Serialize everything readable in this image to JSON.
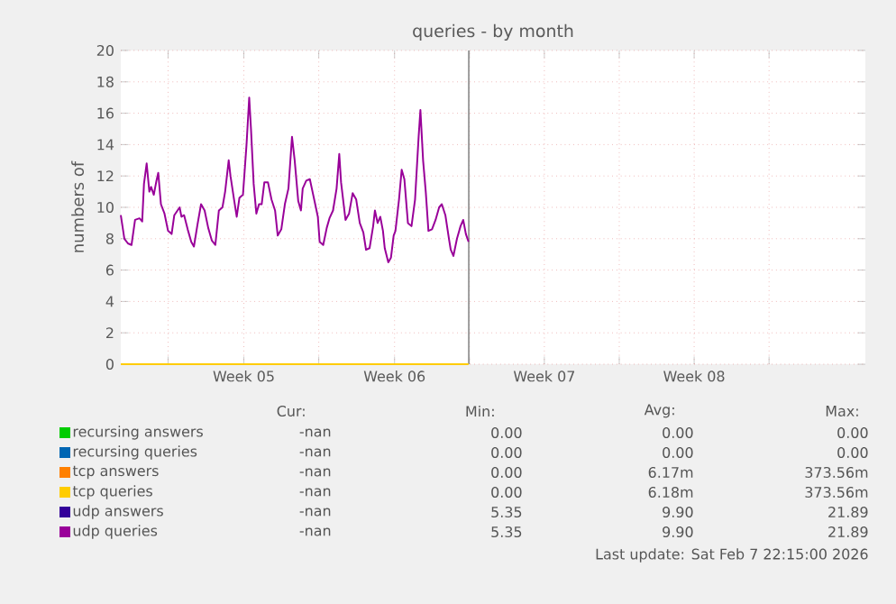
{
  "chart_data": {
    "type": "line",
    "title": "queries - by month",
    "ylabel": "numbers of",
    "xlim": [
      "2026-01-22T16:00",
      "2026-02-26T11:00"
    ],
    "ylim": [
      0,
      20
    ],
    "yticks": [
      0,
      2,
      4,
      6,
      8,
      10,
      12,
      14,
      16,
      18,
      20
    ],
    "xticks": [
      {
        "value": "2026-01-24T21:00",
        "label": null
      },
      {
        "value": "2026-01-28T10:00",
        "label": "Week 05"
      },
      {
        "value": "2026-01-31T22:00",
        "label": null
      },
      {
        "value": "2026-02-04T11:00",
        "label": "Week 06"
      },
      {
        "value": "2026-02-07T23:00",
        "label": null
      },
      {
        "value": "2026-02-11T11:00",
        "label": "Week 07"
      },
      {
        "value": "2026-02-14T23:00",
        "label": null
      },
      {
        "value": "2026-02-18T11:00",
        "label": "Week 08"
      },
      {
        "value": "2026-02-21T23:00",
        "label": null
      }
    ],
    "grid": true,
    "legend": "bottom",
    "marker": "none",
    "line_style": "solid",
    "ref_lines": [
      {
        "axis": "x",
        "value": "2026-02-07T22:15",
        "color": "#888888"
      }
    ],
    "series": [
      {
        "name": "recursing answers",
        "color": "#00cc00",
        "values": [
          null
        ]
      },
      {
        "name": "recursing queries",
        "color": "#0066b3",
        "values": [
          null
        ]
      },
      {
        "name": "tcp answers",
        "color": "#ff8000",
        "values": [
          null
        ]
      },
      {
        "name": "tcp queries",
        "color": "#ffcc00",
        "x": [
          "2026-01-22T16:00",
          "2026-02-07T22:00"
        ],
        "values": [
          0,
          0
        ]
      },
      {
        "name": "udp answers",
        "color": "#330099",
        "values": [
          null
        ]
      },
      {
        "name": "udp queries",
        "color": "#990099",
        "x": [
          "2026-01-22T16:00",
          "2026-01-22T20:00",
          "2026-01-23T00:00",
          "2026-01-23T04:00",
          "2026-01-23T08:00",
          "2026-01-23T13:00",
          "2026-01-23T16:00",
          "2026-01-23T18:00",
          "2026-01-23T21:00",
          "2026-01-24T00:00",
          "2026-01-24T02:00",
          "2026-01-24T05:00",
          "2026-01-24T08:00",
          "2026-01-24T10:00",
          "2026-01-24T13:00",
          "2026-01-24T17:00",
          "2026-01-24T21:00",
          "2026-01-25T01:00",
          "2026-01-25T04:00",
          "2026-01-25T10:00",
          "2026-01-25T12:00",
          "2026-01-25T15:00",
          "2026-01-25T19:00",
          "2026-01-25T23:00",
          "2026-01-26T02:00",
          "2026-01-26T06:00",
          "2026-01-26T10:00",
          "2026-01-26T14:00",
          "2026-01-26T18:00",
          "2026-01-26T22:00",
          "2026-01-27T02:00",
          "2026-01-27T06:00",
          "2026-01-27T10:00",
          "2026-01-27T13:00",
          "2026-01-27T17:00",
          "2026-01-27T19:00",
          "2026-01-27T23:00",
          "2026-01-28T02:00",
          "2026-01-28T05:00",
          "2026-01-28T09:00",
          "2026-01-28T13:00",
          "2026-01-28T16:00",
          "2026-01-28T18:00",
          "2026-01-28T21:00",
          "2026-01-29T00:00",
          "2026-01-29T03:00",
          "2026-01-29T06:00",
          "2026-01-29T09:00",
          "2026-01-29T13:00",
          "2026-01-29T17:00",
          "2026-01-29T21:00",
          "2026-01-30T00:00",
          "2026-01-30T04:00",
          "2026-01-30T08:00",
          "2026-01-30T12:00",
          "2026-01-30T16:00",
          "2026-01-30T19:00",
          "2026-01-30T23:00",
          "2026-01-31T02:00",
          "2026-01-31T04:00",
          "2026-01-31T08:00",
          "2026-01-31T12:00",
          "2026-01-31T15:00",
          "2026-01-31T18:00",
          "2026-01-31T21:00",
          "2026-01-31T23:00",
          "2026-02-01T03:00",
          "2026-02-01T07:00",
          "2026-02-01T10:00",
          "2026-02-01T14:00",
          "2026-02-01T18:00",
          "2026-02-01T21:00",
          "2026-02-01T23:00",
          "2026-02-02T04:00",
          "2026-02-02T08:00",
          "2026-02-02T12:00",
          "2026-02-02T16:00",
          "2026-02-02T20:00",
          "2026-02-03T00:00",
          "2026-02-03T03:00",
          "2026-02-03T07:00",
          "2026-02-03T11:00",
          "2026-02-03T13:00",
          "2026-02-03T16:00",
          "2026-02-03T19:00",
          "2026-02-03T22:00",
          "2026-02-04T00:00",
          "2026-02-04T04:00",
          "2026-02-04T07:00",
          "2026-02-04T10:00",
          "2026-02-04T12:00",
          "2026-02-04T16:00",
          "2026-02-04T19:00",
          "2026-02-04T22:00",
          "2026-02-05T02:00",
          "2026-02-05T06:00",
          "2026-02-05T10:00",
          "2026-02-05T14:00",
          "2026-02-05T16:00",
          "2026-02-05T19:00",
          "2026-02-05T22:00",
          "2026-02-06T01:00",
          "2026-02-06T05:00",
          "2026-02-06T09:00",
          "2026-02-06T13:00",
          "2026-02-06T16:00",
          "2026-02-06T20:00",
          "2026-02-07T00:00",
          "2026-02-07T02:00",
          "2026-02-07T05:00",
          "2026-02-07T09:00",
          "2026-02-07T13:00",
          "2026-02-07T16:00",
          "2026-02-07T19:00",
          "2026-02-07T22:00"
        ],
        "values": [
          9.5,
          8,
          7.7,
          7.6,
          9.2,
          9.3,
          9.1,
          11.5,
          12.8,
          11,
          11.3,
          10.8,
          11.7,
          12.2,
          10.2,
          9.6,
          8.5,
          8.3,
          9.5,
          10,
          9.4,
          9.5,
          8.6,
          7.8,
          7.5,
          8.9,
          10.2,
          9.8,
          8.7,
          7.9,
          7.6,
          9.8,
          10,
          11,
          13,
          12,
          10.5,
          9.4,
          10.6,
          10.8,
          14,
          17,
          15,
          11.5,
          9.6,
          10.2,
          10.2,
          11.6,
          11.6,
          10.5,
          9.8,
          8.2,
          8.6,
          10.2,
          11.2,
          14.5,
          13,
          10.4,
          9.8,
          11.2,
          11.7,
          11.8,
          11,
          10.2,
          9.4,
          7.8,
          7.6,
          8.7,
          9.3,
          9.8,
          11.2,
          13.4,
          11.6,
          9.2,
          9.6,
          10.9,
          10.5,
          9,
          8.4,
          7.3,
          7.4,
          8.8,
          9.8,
          9,
          9.4,
          8.5,
          7.4,
          6.5,
          6.8,
          8.2,
          8.5,
          10.5,
          12.4,
          11.8,
          9,
          8.8,
          10.5,
          14.5,
          16.2,
          13,
          11,
          8.5,
          8.6,
          9.2,
          10,
          10.2,
          9.5,
          8,
          7.3,
          6.9,
          8,
          8.8,
          9.2,
          8.3,
          7.8
        ]
      }
    ],
    "annotations": [
      "Cur:",
      "Min:",
      "Avg:",
      "Max:",
      "-nan",
      "0.00",
      "0.00",
      "0.00",
      "-nan",
      "0.00",
      "0.00",
      "0.00",
      "-nan",
      "0.00",
      "6.17m",
      "373.56m",
      "-nan",
      "0.00",
      "6.18m",
      "373.56m",
      "-nan",
      "5.35",
      "9.90",
      "21.89",
      "-nan",
      "5.35",
      "9.90",
      "21.89",
      "Last update: Sat Feb  7 22:15:00 2026"
    ]
  }
}
